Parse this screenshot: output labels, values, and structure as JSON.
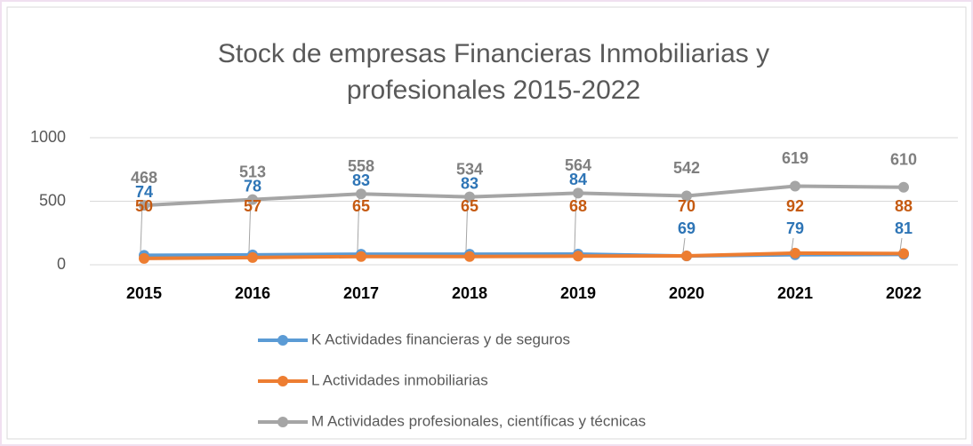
{
  "chart_data": {
    "type": "line",
    "title": [
      "Stock de empresas  Financieras Inmobiliarias y",
      "profesionales  2015-2022"
    ],
    "categories": [
      "2015",
      "2016",
      "2017",
      "2018",
      "2019",
      "2020",
      "2021",
      "2022"
    ],
    "series": [
      {
        "name": "K Actividades financieras y de seguros",
        "color": "#5b9bd5",
        "values": [
          74,
          78,
          83,
          83,
          84,
          69,
          79,
          81
        ]
      },
      {
        "name": "L Actividades inmobiliarias",
        "color": "#ed7d31",
        "values": [
          50,
          57,
          65,
          65,
          68,
          70,
          92,
          88
        ]
      },
      {
        "name": "M Actividades profesionales, científicas y técnicas",
        "color": "#a5a5a5",
        "values": [
          468,
          513,
          558,
          534,
          564,
          542,
          619,
          610
        ]
      }
    ],
    "ylim": [
      0,
      1000
    ],
    "yticks": [
      0,
      500,
      1000
    ],
    "grid": true,
    "legend": "bottom"
  }
}
